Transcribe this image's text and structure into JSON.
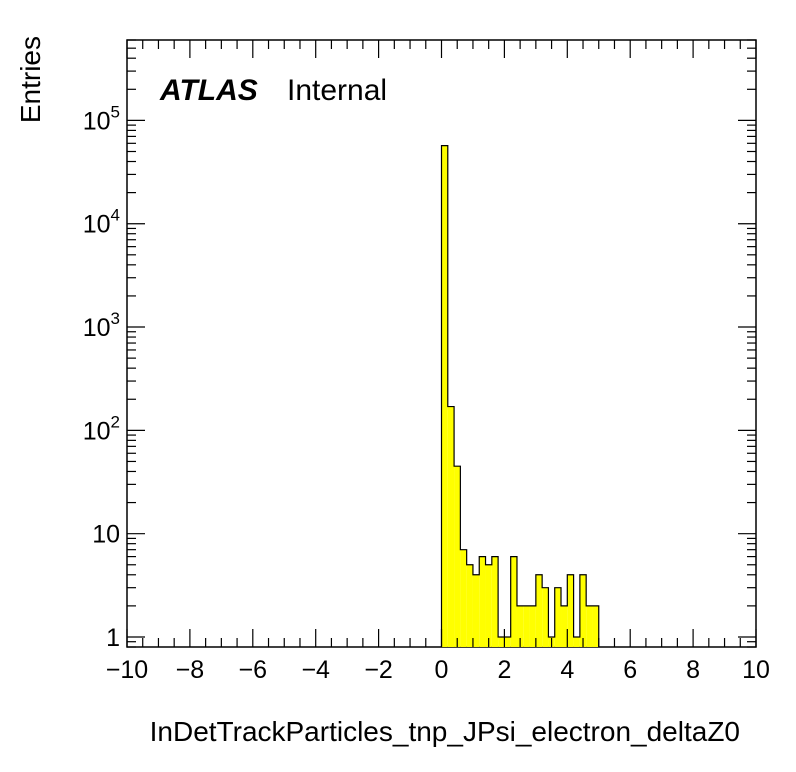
{
  "chart_data": {
    "type": "bar",
    "histogram": true,
    "xlabel": "InDetTrackParticles_tnp_JPsi_electron_deltaZ0",
    "ylabel": "Entries",
    "experiment_label": "ATLAS",
    "status_label": "Internal",
    "xlim": [
      -10,
      10
    ],
    "ylog": true,
    "ylim": [
      0.8,
      600000
    ],
    "x_ticks": [
      -10,
      -8,
      -6,
      -4,
      -2,
      0,
      2,
      4,
      6,
      8,
      10
    ],
    "x_tick_labels": [
      "−10",
      "−8",
      "−6",
      "−4",
      "−2",
      "0",
      "2",
      "4",
      "6",
      "8",
      "10"
    ],
    "y_ticks": [
      1,
      10,
      100,
      1000,
      10000,
      100000
    ],
    "y_tick_labels": [
      {
        "base": "1",
        "exp": ""
      },
      {
        "base": "10",
        "exp": ""
      },
      {
        "base": "10",
        "exp": "2"
      },
      {
        "base": "10",
        "exp": "3"
      },
      {
        "base": "10",
        "exp": "4"
      },
      {
        "base": "10",
        "exp": "5"
      }
    ],
    "fill_color": "#ffff00",
    "line_color": "#000000",
    "bin_width": 0.2,
    "bin_edges_start": 0.0,
    "values": [
      57000,
      170,
      45,
      7,
      5,
      4,
      6,
      5,
      6,
      1,
      1,
      6,
      2,
      2,
      2,
      4,
      3,
      1,
      3,
      2,
      4,
      1,
      4,
      2,
      2
    ]
  }
}
